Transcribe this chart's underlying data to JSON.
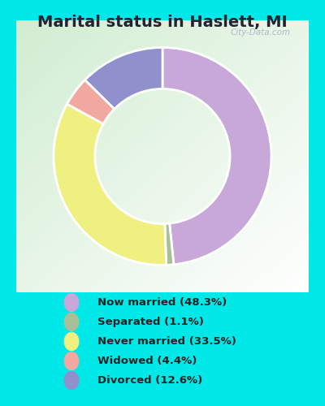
{
  "title": "Marital status in Haslett, MI",
  "slices": [
    48.3,
    1.1,
    33.5,
    4.4,
    12.6
  ],
  "colors": [
    "#C8A8D8",
    "#A8C098",
    "#F0F080",
    "#F0A8A0",
    "#9090CC"
  ],
  "labels": [
    "Now married (48.3%)",
    "Separated (1.1%)",
    "Never married (33.5%)",
    "Widowed (4.4%)",
    "Divorced (12.6%)"
  ],
  "legend_colors": [
    "#C8A8D8",
    "#A8C098",
    "#F0F080",
    "#F0A8A0",
    "#9090CC"
  ],
  "bg_outer": "#00E8E8",
  "title_fontsize": 14,
  "watermark": "City-Data.com",
  "start_angle": 90,
  "donut_width": 0.38
}
